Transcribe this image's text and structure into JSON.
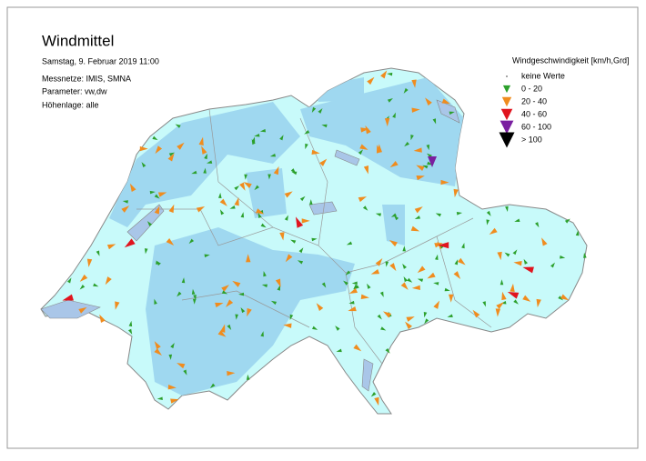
{
  "header": {
    "title": "Windmittel",
    "date": "Samstag, 9. Februar 2019 11:00",
    "lines": [
      "Messnetze: IMIS, SMNA",
      "Parameter: vw,dw",
      "Höhenlage: alle"
    ]
  },
  "legend": {
    "title": "Windgeschwindigkeit [km/h,Grd]",
    "items": [
      {
        "label": "keine Werte",
        "color": "#888888"
      },
      {
        "label": "0 - 20",
        "color": "#2ca02c"
      },
      {
        "label": "20 - 40",
        "color": "#f08c1e"
      },
      {
        "label": "40 - 60",
        "color": "#e0141e"
      },
      {
        "label": "60 - 100",
        "color": "#7a1fa0"
      },
      {
        "label": "> 100",
        "color": "#000000"
      }
    ]
  }
}
